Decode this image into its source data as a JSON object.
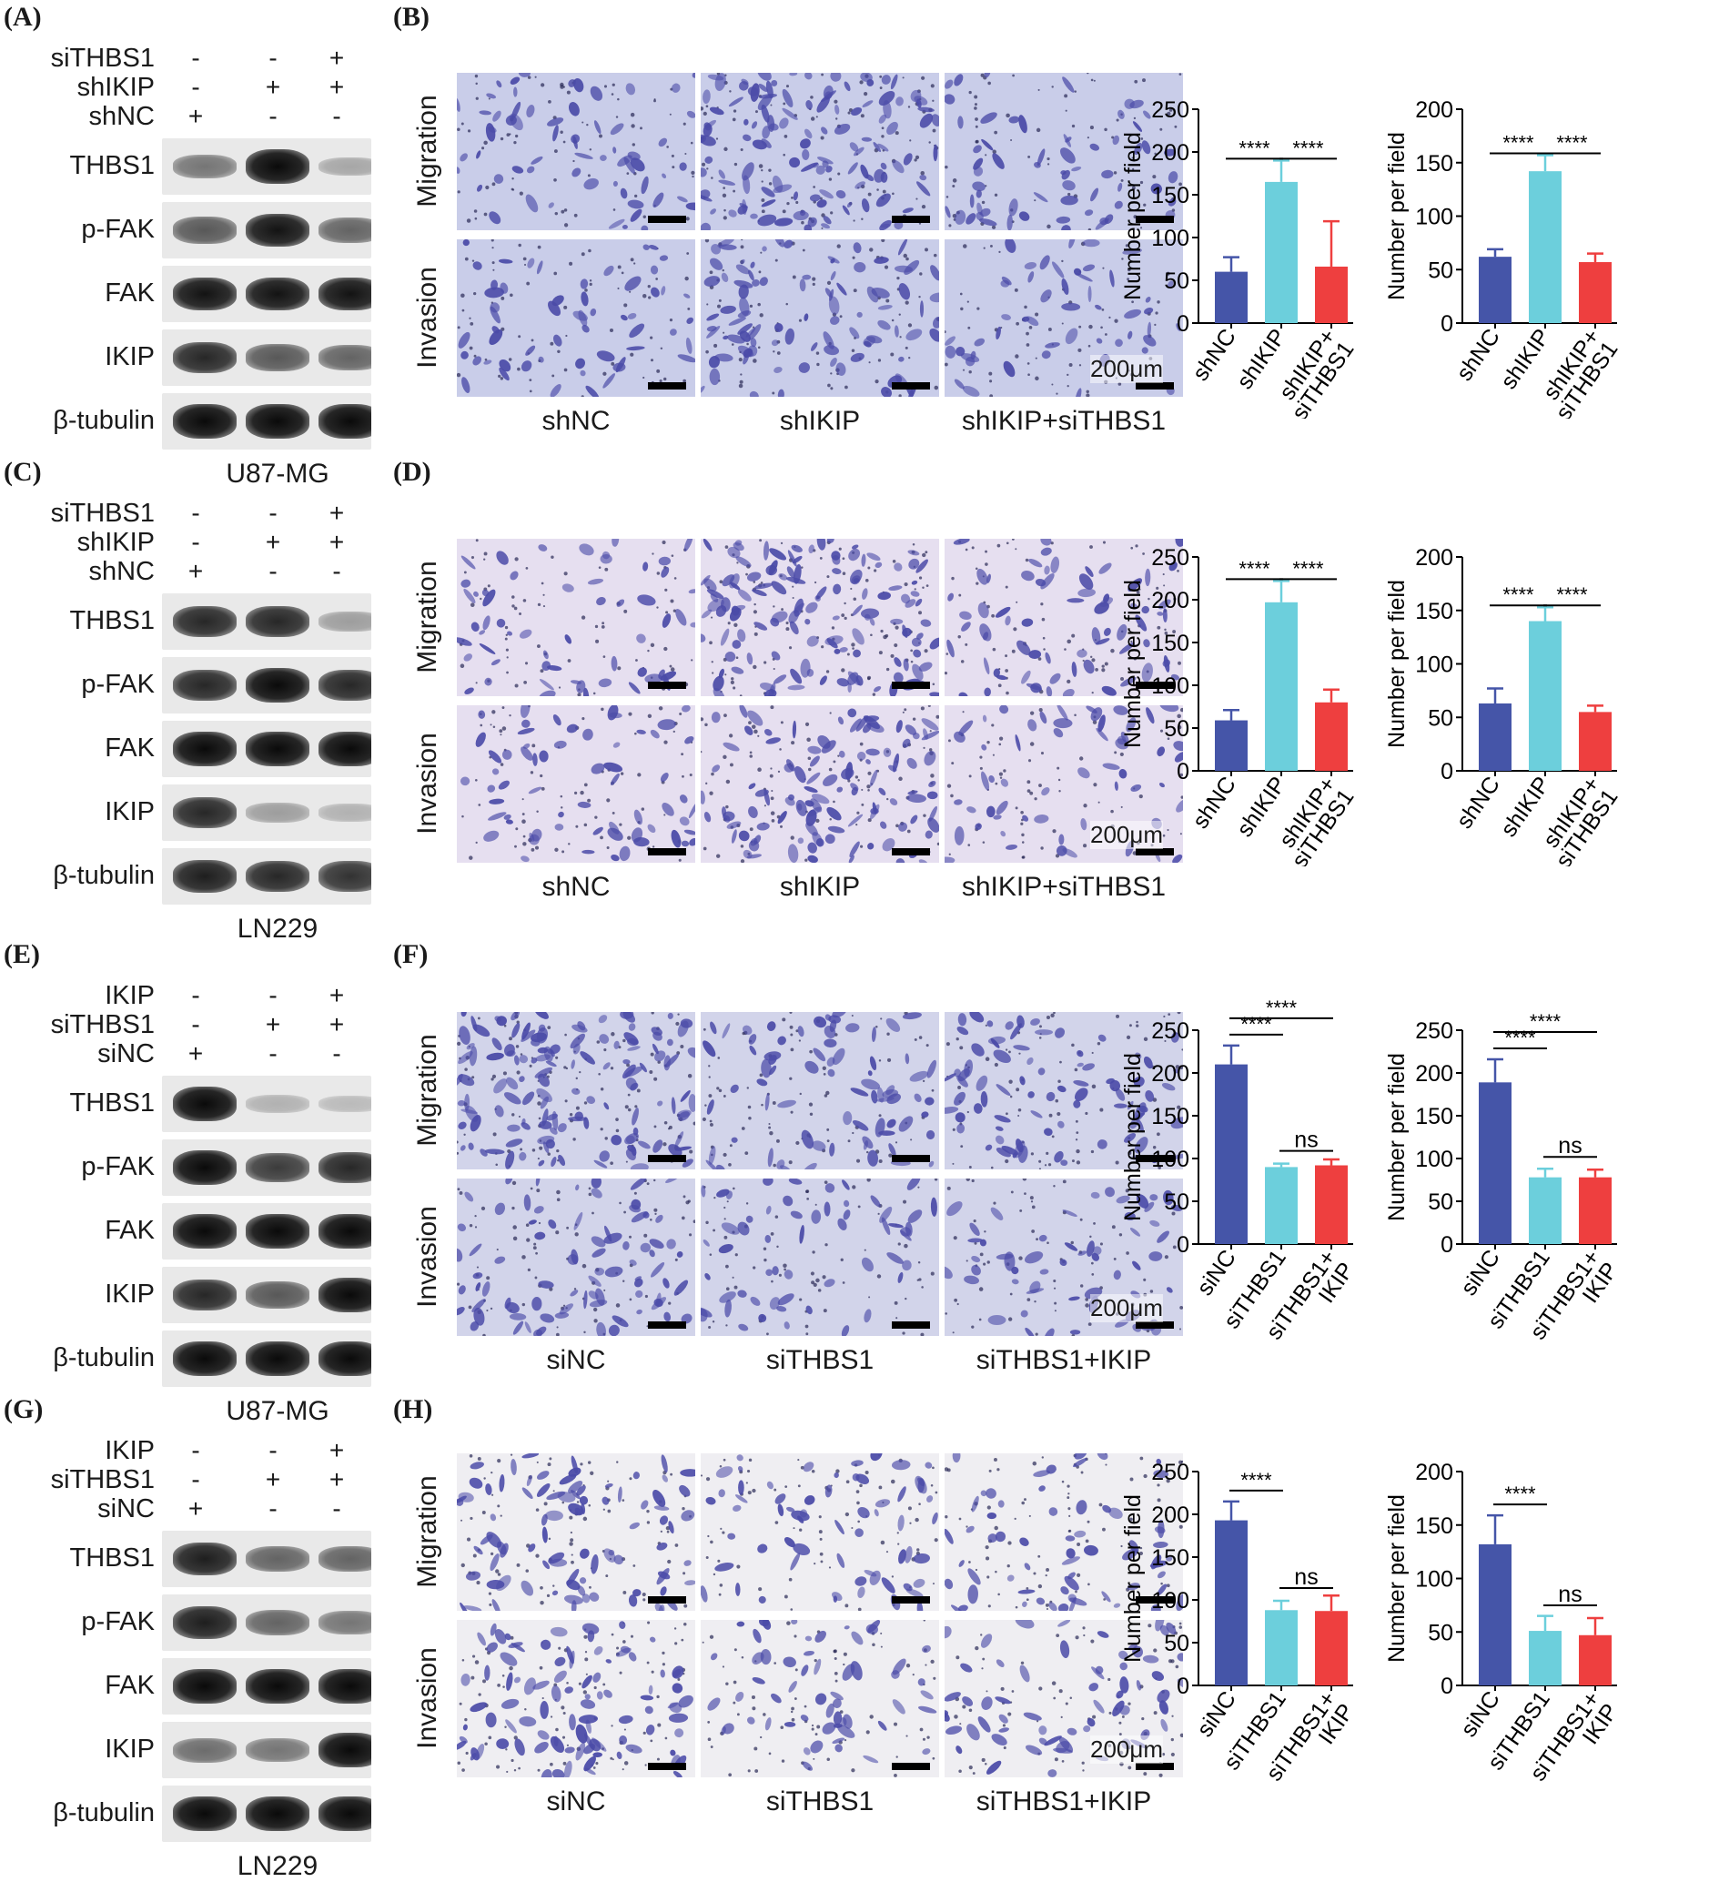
{
  "panel_labels": [
    "(A)",
    "(B)",
    "(C)",
    "(D)",
    "(E)",
    "(F)",
    "(G)",
    "(H)"
  ],
  "blot_panels": [
    {
      "id": "A",
      "treatment_rows": [
        {
          "label": "siTHBS1",
          "signs": [
            "-",
            "-",
            "+"
          ]
        },
        {
          "label": "shIKIP",
          "signs": [
            "-",
            "+",
            "+"
          ]
        },
        {
          "label": "shNC",
          "signs": [
            "+",
            "-",
            "-"
          ]
        }
      ],
      "bands": [
        "THBS1",
        "p-FAK",
        "FAK",
        "IKIP",
        "β-tubulin"
      ],
      "intensity": [
        [
          0.45,
          1.0,
          0.2
        ],
        [
          0.6,
          0.95,
          0.55
        ],
        [
          0.95,
          0.95,
          0.95
        ],
        [
          0.85,
          0.6,
          0.55
        ],
        [
          1.0,
          1.0,
          1.0
        ]
      ],
      "cell_line": "U87-MG"
    },
    {
      "id": "C",
      "treatment_rows": [
        {
          "label": "siTHBS1",
          "signs": [
            "-",
            "-",
            "+"
          ]
        },
        {
          "label": "shIKIP",
          "signs": [
            "-",
            "+",
            "+"
          ]
        },
        {
          "label": "shNC",
          "signs": [
            "+",
            "-",
            "-"
          ]
        }
      ],
      "bands": [
        "THBS1",
        "p-FAK",
        "FAK",
        "IKIP",
        "β-tubulin"
      ],
      "intensity": [
        [
          0.85,
          0.85,
          0.25
        ],
        [
          0.85,
          1.0,
          0.85
        ],
        [
          1.0,
          1.0,
          1.0
        ],
        [
          0.85,
          0.25,
          0.15
        ],
        [
          0.9,
          0.85,
          0.8
        ]
      ],
      "cell_line": "LN229"
    },
    {
      "id": "E",
      "treatment_rows": [
        {
          "label": "IKIP",
          "signs": [
            "-",
            "-",
            "+"
          ]
        },
        {
          "label": "siTHBS1",
          "signs": [
            "-",
            "+",
            "+"
          ]
        },
        {
          "label": "siNC",
          "signs": [
            "+",
            "-",
            "-"
          ]
        }
      ],
      "bands": [
        "THBS1",
        "p-FAK",
        "FAK",
        "IKIP",
        "β-tubulin"
      ],
      "intensity": [
        [
          1.0,
          0.15,
          0.1
        ],
        [
          1.0,
          0.75,
          0.85
        ],
        [
          1.0,
          1.0,
          1.0
        ],
        [
          0.85,
          0.6,
          1.0
        ],
        [
          1.0,
          1.0,
          1.0
        ]
      ],
      "cell_line": "U87-MG"
    },
    {
      "id": "G",
      "treatment_rows": [
        {
          "label": "IKIP",
          "signs": [
            "-",
            "-",
            "+"
          ]
        },
        {
          "label": "siTHBS1",
          "signs": [
            "-",
            "+",
            "+"
          ]
        },
        {
          "label": "siNC",
          "signs": [
            "+",
            "-",
            "-"
          ]
        }
      ],
      "bands": [
        "THBS1",
        "p-FAK",
        "FAK",
        "IKIP",
        "β-tubulin"
      ],
      "intensity": [
        [
          0.9,
          0.55,
          0.55
        ],
        [
          0.9,
          0.55,
          0.45
        ],
        [
          1.0,
          1.0,
          1.0
        ],
        [
          0.5,
          0.45,
          1.0
        ],
        [
          1.0,
          1.0,
          1.0
        ]
      ],
      "cell_line": "LN229"
    }
  ],
  "micro_panels": [
    {
      "id": "B",
      "row_titles": [
        "Migration",
        "Invasion"
      ],
      "columns": [
        "shNC",
        "shIKIP",
        "shIKIP+siTHBS1"
      ],
      "scale": "200μm",
      "density": [
        [
          0.35,
          0.9,
          0.35
        ],
        [
          0.3,
          0.6,
          0.25
        ]
      ],
      "bg": "#c9cde9"
    },
    {
      "id": "D",
      "row_titles": [
        "Migration",
        "Invasion"
      ],
      "columns": [
        "shNC",
        "shIKIP",
        "shIKIP+siTHBS1"
      ],
      "scale": "200μm",
      "density": [
        [
          0.3,
          0.9,
          0.4
        ],
        [
          0.35,
          0.75,
          0.3
        ]
      ],
      "bg": "#e6dff0"
    },
    {
      "id": "F",
      "row_titles": [
        "Migration",
        "Invasion"
      ],
      "columns": [
        "siNC",
        "siTHBS1",
        "siTHBS1+IKIP"
      ],
      "scale": "200μm",
      "density": [
        [
          0.95,
          0.45,
          0.5
        ],
        [
          0.5,
          0.3,
          0.3
        ]
      ],
      "bg": "#d2d4ea"
    },
    {
      "id": "H",
      "row_titles": [
        "Migration",
        "Invasion"
      ],
      "columns": [
        "siNC",
        "siTHBS1",
        "siTHBS1+IKIP"
      ],
      "scale": "200μm",
      "density": [
        [
          0.55,
          0.35,
          0.35
        ],
        [
          0.6,
          0.3,
          0.35
        ]
      ],
      "bg": "#efeef2"
    }
  ],
  "colors": {
    "blue": "#4555a8",
    "cyan": "#6ccfdc",
    "red": "#ee3f3f",
    "black": "#000000"
  },
  "chart_data": [
    {
      "panel": "B",
      "type": "bar",
      "categories": [
        "shNC",
        "shIKIP",
        "shIKIP+\nsiTHBS1"
      ],
      "values": [
        60,
        165,
        66
      ],
      "errors": [
        17,
        25,
        53
      ],
      "ylabel": "Number per field",
      "ylim": [
        0,
        250
      ],
      "yticks": [
        0,
        50,
        100,
        150,
        200,
        250
      ],
      "sig": [
        {
          "from": 0,
          "to": 1,
          "label": "****"
        },
        {
          "from": 1,
          "to": 2,
          "label": "****"
        }
      ],
      "sig_style": "adjacent"
    },
    {
      "panel": "B",
      "type": "bar",
      "categories": [
        "shNC",
        "shIKIP",
        "shIKIP+\nsiTHBS1"
      ],
      "values": [
        62,
        142,
        57
      ],
      "errors": [
        7,
        15,
        8
      ],
      "ylabel": "Number per field",
      "ylim": [
        0,
        200
      ],
      "yticks": [
        0,
        50,
        100,
        150,
        200
      ],
      "sig": [
        {
          "from": 0,
          "to": 1,
          "label": "****"
        },
        {
          "from": 1,
          "to": 2,
          "label": "****"
        }
      ],
      "sig_style": "adjacent"
    },
    {
      "panel": "D",
      "type": "bar",
      "categories": [
        "shNC",
        "shIKIP",
        "shIKIP+\nsiTHBS1"
      ],
      "values": [
        59,
        197,
        80
      ],
      "errors": [
        12,
        25,
        15
      ],
      "ylabel": "Number per field",
      "ylim": [
        0,
        250
      ],
      "yticks": [
        0,
        50,
        100,
        150,
        200,
        250
      ],
      "sig": [
        {
          "from": 0,
          "to": 1,
          "label": "****"
        },
        {
          "from": 1,
          "to": 2,
          "label": "****"
        }
      ],
      "sig_style": "adjacent"
    },
    {
      "panel": "D",
      "type": "bar",
      "categories": [
        "shNC",
        "shIKIP",
        "shIKIP+\nsiTHBS1"
      ],
      "values": [
        63,
        140,
        55
      ],
      "errors": [
        14,
        13,
        6
      ],
      "ylabel": "Number per field",
      "ylim": [
        0,
        200
      ],
      "yticks": [
        0,
        50,
        100,
        150,
        200
      ],
      "sig": [
        {
          "from": 0,
          "to": 1,
          "label": "****"
        },
        {
          "from": 1,
          "to": 2,
          "label": "****"
        }
      ],
      "sig_style": "adjacent"
    },
    {
      "panel": "F",
      "type": "bar",
      "categories": [
        "siNC",
        "siTHBS1",
        "siTHBS1+\nIKIP"
      ],
      "values": [
        210,
        90,
        92
      ],
      "errors": [
        22,
        4,
        7
      ],
      "ylabel": "Number per field",
      "ylim": [
        0,
        250
      ],
      "yticks": [
        0,
        50,
        100,
        150,
        200,
        250
      ],
      "sig": [
        {
          "from": 0,
          "to": 1,
          "label": "****"
        },
        {
          "from": 0,
          "to": 2,
          "label": "****"
        },
        {
          "from": 1,
          "to": 2,
          "label": "ns"
        }
      ],
      "sig_style": "stacked"
    },
    {
      "panel": "F",
      "type": "bar",
      "categories": [
        "siNC",
        "siTHBS1",
        "siTHBS1+\nIKIP"
      ],
      "values": [
        189,
        78,
        78
      ],
      "errors": [
        27,
        10,
        9
      ],
      "ylabel": "Number per field",
      "ylim": [
        0,
        250
      ],
      "yticks": [
        0,
        50,
        100,
        150,
        200,
        250
      ],
      "sig": [
        {
          "from": 0,
          "to": 1,
          "label": "****"
        },
        {
          "from": 0,
          "to": 2,
          "label": "****"
        },
        {
          "from": 1,
          "to": 2,
          "label": "ns"
        }
      ],
      "sig_style": "stacked"
    },
    {
      "panel": "H",
      "type": "bar",
      "categories": [
        "siNC",
        "siTHBS1",
        "siTHBS1+\nIKIP"
      ],
      "values": [
        193,
        88,
        87
      ],
      "errors": [
        22,
        11,
        18
      ],
      "ylabel": "Number per field",
      "ylim": [
        0,
        250
      ],
      "yticks": [
        0,
        50,
        100,
        150,
        200,
        250
      ],
      "sig": [
        {
          "from": 0,
          "to": 1,
          "label": "****"
        },
        {
          "from": 1,
          "to": 2,
          "label": "ns"
        }
      ],
      "sig_style": "stacked"
    },
    {
      "panel": "H",
      "type": "bar",
      "categories": [
        "siNC",
        "siTHBS1",
        "siTHBS1+\nIKIP"
      ],
      "values": [
        132,
        51,
        47
      ],
      "errors": [
        27,
        14,
        16
      ],
      "ylabel": "Number per field",
      "ylim": [
        0,
        200
      ],
      "yticks": [
        0,
        50,
        100,
        150,
        200
      ],
      "sig": [
        {
          "from": 0,
          "to": 1,
          "label": "****"
        },
        {
          "from": 1,
          "to": 2,
          "label": "ns"
        }
      ],
      "sig_style": "stacked"
    }
  ]
}
